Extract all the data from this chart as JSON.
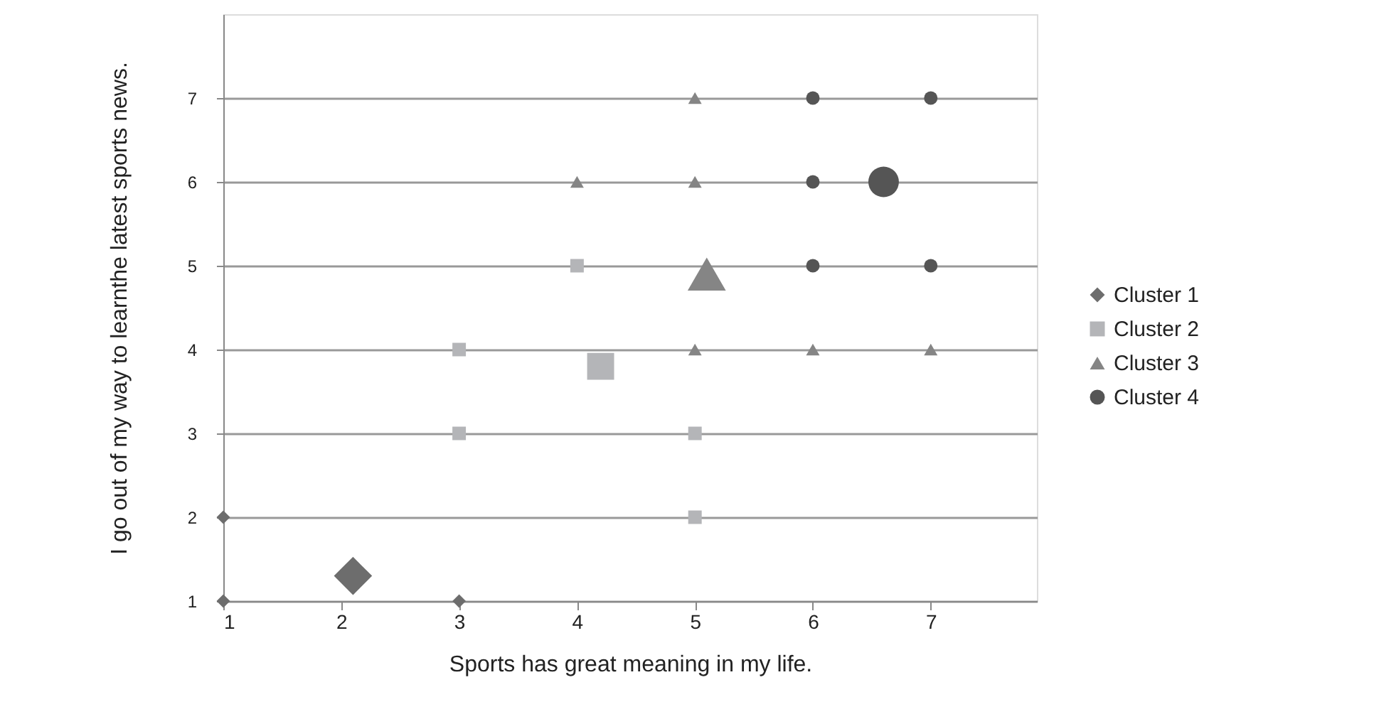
{
  "chart_data": {
    "type": "scatter",
    "xlabel": "Sports has great meaning in my life.",
    "ylabel": "I go out of my way to learnthe latest sports news.",
    "xlim": [
      1,
      7.9
    ],
    "xticks": [
      1,
      2,
      3,
      4,
      5,
      6,
      7
    ],
    "ylim": [
      1,
      8
    ],
    "yticks": [
      1,
      2,
      3,
      4,
      5,
      6,
      7
    ],
    "grid": "y",
    "legend": "right",
    "series": [
      {
        "name": "Cluster 1",
        "color": "#6d6d6d",
        "marker": "diamond",
        "x": [
          1,
          1,
          3
        ],
        "values": [
          1,
          2,
          1
        ]
      },
      {
        "name": "Cluster 2",
        "color": "#b4b5b8",
        "marker": "square",
        "x": [
          3,
          3,
          4,
          5,
          5
        ],
        "values": [
          4,
          3,
          5,
          3,
          2
        ]
      },
      {
        "name": "Cluster 3",
        "color": "#858585",
        "marker": "triangle",
        "x": [
          4,
          5,
          5,
          5,
          6,
          7
        ],
        "values": [
          6,
          7,
          6,
          4,
          4,
          4
        ]
      },
      {
        "name": "Cluster 4",
        "color": "#555555",
        "marker": "circle",
        "x": [
          6,
          7,
          6,
          6,
          7
        ],
        "values": [
          7,
          7,
          6,
          5,
          5
        ]
      },
      {
        "color": "#6d6d6d",
        "marker": "diamond",
        "x": [
          2.1
        ],
        "values": [
          1.3
        ]
      },
      {
        "color": "#b4b5b8",
        "marker": "square",
        "x": [
          4.2
        ],
        "values": [
          3.8
        ]
      },
      {
        "color": "#858585",
        "marker": "triangle",
        "x": [
          5.1
        ],
        "values": [
          4.9
        ]
      },
      {
        "color": "#555555",
        "marker": "circle",
        "x": [
          6.6
        ],
        "values": [
          6
        ]
      }
    ]
  }
}
